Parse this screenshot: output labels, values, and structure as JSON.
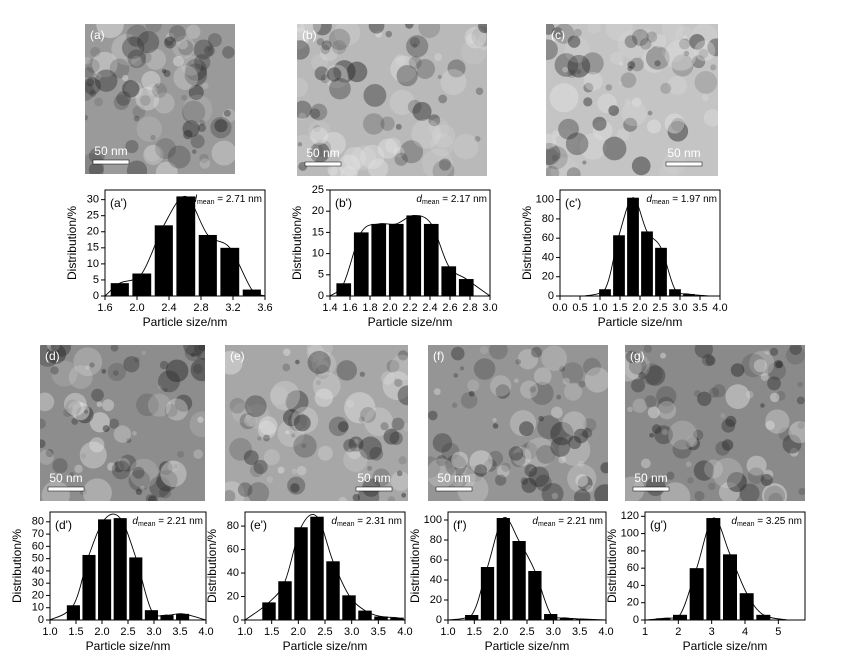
{
  "images": [
    {
      "label": "(a)",
      "scale": "50 nm"
    },
    {
      "label": "(b)",
      "scale": "50 nm"
    },
    {
      "label": "(c)",
      "scale": "50 nm"
    },
    {
      "label": "(d)",
      "scale": "50 nm"
    },
    {
      "label": "(e)",
      "scale": "50 nm"
    },
    {
      "label": "(f)",
      "scale": "50 nm"
    },
    {
      "label": "(g)",
      "scale": "50 nm"
    }
  ],
  "chart_data": [
    {
      "type": "histogram",
      "label": "(a')",
      "annotation": {
        "symbol": "d",
        "subscript": "mean",
        "text": " = 2.71 nm"
      },
      "xlabel": "Particle size/nm",
      "ylabel": "Distribution/%",
      "color": "#000000",
      "bins": [
        1.65,
        1.92,
        2.2,
        2.47,
        2.75,
        3.02,
        3.3,
        3.57
      ],
      "values": [
        4,
        7,
        22,
        31,
        19,
        15,
        2
      ],
      "xlim": [
        1.6,
        3.6
      ],
      "xticks": [
        1.6,
        {
          "value": 2,
          "label": "2.0"
        },
        2.4,
        2.8,
        3.2,
        3.6
      ],
      "ylim": [
        0,
        33
      ],
      "yticks": [
        0,
        5,
        10,
        15,
        20,
        25,
        30
      ]
    },
    {
      "type": "histogram",
      "label": "(b')",
      "annotation": {
        "symbol": "d",
        "subscript": "mean",
        "text": " = 2.17 nm"
      },
      "xlabel": "Particle size/nm",
      "ylabel": "Distribution/%",
      "color": "#000000",
      "bins": [
        1.45,
        1.625,
        1.8,
        1.975,
        2.15,
        2.325,
        2.5,
        2.675,
        2.85
      ],
      "values": [
        3,
        15,
        17,
        17,
        19,
        17,
        7,
        4
      ],
      "xlim": [
        1.4,
        3.0
      ],
      "xticks": [
        1.4,
        1.6,
        1.8,
        {
          "value": 2,
          "label": "2.0"
        },
        2.2,
        2.4,
        2.6,
        2.8,
        {
          "value": 3,
          "label": "3.0"
        }
      ],
      "ylim": [
        0,
        25
      ],
      "yticks": [
        0,
        5,
        10,
        15,
        20,
        25
      ]
    },
    {
      "type": "histogram",
      "label": "(c')",
      "annotation": {
        "symbol": "d",
        "subscript": "mean",
        "text": " = 1.97 nm"
      },
      "xlabel": "Particle size/nm",
      "ylabel": "Distribution/%",
      "color": "#000000",
      "bins": [
        0.95,
        1.3,
        1.65,
        2.0,
        2.35,
        2.7,
        3.05,
        3.4
      ],
      "values": [
        7,
        63,
        102,
        67,
        50,
        7,
        2
      ],
      "xlim": [
        0,
        4
      ],
      "xticks": [
        {
          "value": 0,
          "label": "0.0"
        },
        0.5,
        {
          "value": 1,
          "label": "1.0"
        },
        1.5,
        {
          "value": 2,
          "label": "2.0"
        },
        2.5,
        {
          "value": 3,
          "label": "3.0"
        },
        3.5,
        {
          "value": 4,
          "label": "4.0"
        }
      ],
      "ylim": [
        0,
        110
      ],
      "yticks": [
        0,
        20,
        40,
        60,
        80,
        100
      ]
    },
    {
      "type": "histogram",
      "label": "(d')",
      "annotation": {
        "symbol": "d",
        "subscript": "mean",
        "text": " = 2.21 nm"
      },
      "xlabel": "Particle size/nm",
      "ylabel": "Distribution/%",
      "color": "#000000",
      "bins": [
        1.3,
        1.6,
        1.9,
        2.2,
        2.5,
        2.8,
        3.1,
        3.4,
        3.7
      ],
      "values": [
        12,
        53,
        82,
        83,
        51,
        8,
        4,
        5
      ],
      "xlim": [
        1,
        4
      ],
      "xticks": [
        {
          "value": 1,
          "label": "1.0"
        },
        1.5,
        {
          "value": 2,
          "label": "2.0"
        },
        2.5,
        {
          "value": 3,
          "label": "3.0"
        },
        3.5,
        {
          "value": 4,
          "label": "4.0"
        }
      ],
      "ylim": [
        0,
        88
      ],
      "yticks": [
        0,
        10,
        20,
        30,
        40,
        50,
        60,
        70,
        80
      ]
    },
    {
      "type": "histogram",
      "label": "(e')",
      "annotation": {
        "symbol": "d",
        "subscript": "mean",
        "text": " = 2.31 nm"
      },
      "xlabel": "Particle size/nm",
      "ylabel": "Distribution/%",
      "color": "#000000",
      "bins": [
        1.3,
        1.6,
        1.9,
        2.2,
        2.5,
        2.8,
        3.1,
        3.4,
        3.7,
        4.0
      ],
      "values": [
        15,
        33,
        79,
        88,
        50,
        21,
        8,
        3,
        2
      ],
      "xlim": [
        1,
        4
      ],
      "xticks": [
        {
          "value": 1,
          "label": "1.0"
        },
        1.5,
        {
          "value": 2,
          "label": "2.0"
        },
        2.5,
        {
          "value": 3,
          "label": "3.0"
        },
        3.5,
        {
          "value": 4,
          "label": "4.0"
        }
      ],
      "ylim": [
        0,
        92
      ],
      "yticks": [
        0,
        20,
        40,
        60,
        80
      ]
    },
    {
      "type": "histogram",
      "label": "(f')",
      "annotation": {
        "symbol": "d",
        "subscript": "mean",
        "text": " = 2.21 nm"
      },
      "xlabel": "Particle size/nm",
      "ylabel": "Distribution/%",
      "color": "#000000",
      "bins": [
        1.3,
        1.6,
        1.9,
        2.2,
        2.5,
        2.8,
        3.1,
        3.4,
        3.7
      ],
      "values": [
        5,
        53,
        102,
        79,
        49,
        6,
        2,
        1
      ],
      "xlim": [
        1,
        4
      ],
      "xticks": [
        {
          "value": 1,
          "label": "1.0"
        },
        1.5,
        {
          "value": 2,
          "label": "2.0"
        },
        2.5,
        {
          "value": 3,
          "label": "3.0"
        },
        3.5,
        {
          "value": 4,
          "label": "4.0"
        }
      ],
      "ylim": [
        0,
        108
      ],
      "yticks": [
        0,
        20,
        40,
        60,
        80,
        100
      ]
    },
    {
      "type": "histogram",
      "label": "(g')",
      "annotation": {
        "symbol": "d",
        "subscript": "mean",
        "text": " = 3.25 nm"
      },
      "xlabel": "Particle size/nm",
      "ylabel": "Distribution/%",
      "color": "#000000",
      "bins": [
        1.3,
        1.8,
        2.3,
        2.8,
        3.3,
        3.8,
        4.3,
        4.8
      ],
      "values": [
        2,
        6,
        60,
        118,
        76,
        31,
        6
      ],
      "xlim": [
        1,
        5.8
      ],
      "xticks": [
        1,
        2,
        3,
        4,
        5
      ],
      "ylim": [
        0,
        125
      ],
      "yticks": [
        0,
        20,
        40,
        60,
        80,
        100,
        120
      ]
    }
  ]
}
